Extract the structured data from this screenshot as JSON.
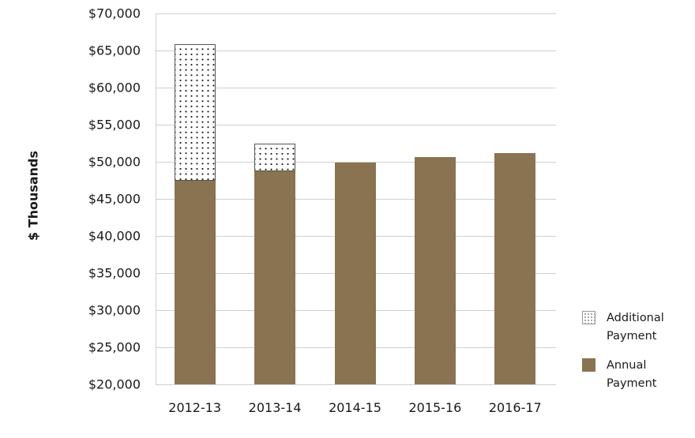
{
  "chart_data": {
    "type": "bar",
    "stacked": true,
    "title": "",
    "xlabel": "",
    "ylabel": "$ Thousands",
    "ylim": [
      20000,
      70000
    ],
    "grid": true,
    "legend_position": "right-bottom",
    "categories": [
      "2012-13",
      "2013-14",
      "2014-15",
      "2015-16",
      "2016-17"
    ],
    "y_ticks": [
      "$20,000",
      "$25,000",
      "$30,000",
      "$35,000",
      "$40,000",
      "$45,000",
      "$50,000",
      "$55,000",
      "$60,000",
      "$65,000",
      "$70,000"
    ],
    "series": [
      {
        "name": "Annual Payment",
        "color": "#8a7350",
        "values": [
          47600,
          48800,
          49900,
          50600,
          51200
        ]
      },
      {
        "name": "Additional Payment",
        "pattern": "dots",
        "values": [
          18300,
          3600,
          0,
          0,
          0
        ]
      }
    ]
  },
  "legend": {
    "items": [
      {
        "label": "Additional Payment",
        "key": "additional"
      },
      {
        "label": "Annual Payment",
        "key": "annual"
      }
    ]
  }
}
